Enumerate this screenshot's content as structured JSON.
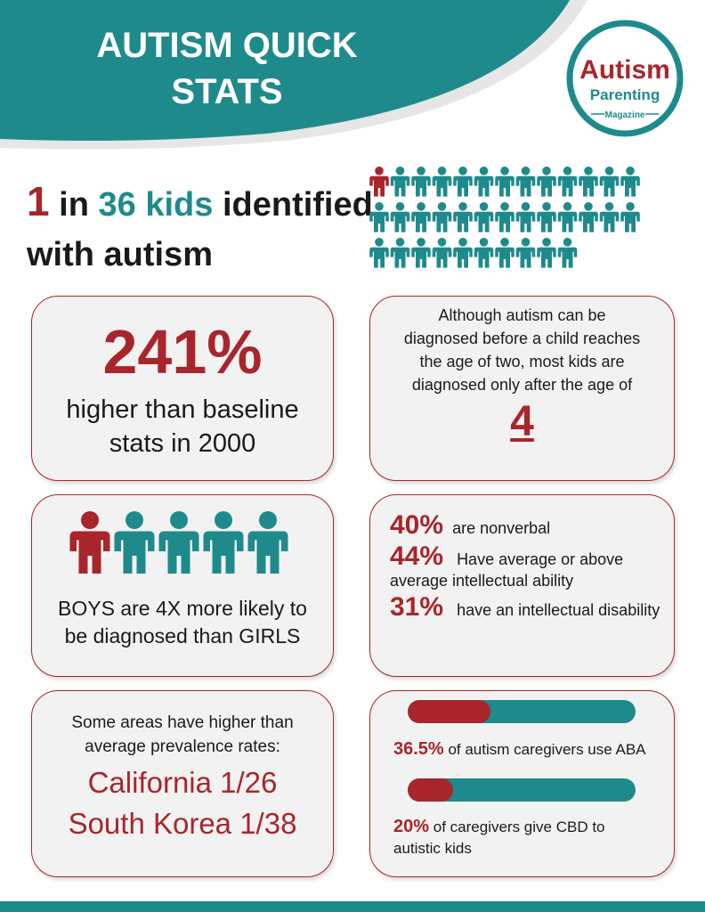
{
  "header": {
    "title_line1": "AUTISM QUICK",
    "title_line2": "STATS"
  },
  "logo": {
    "line1": "Autism",
    "line2": "Parenting",
    "line3": "Magazine"
  },
  "headline": {
    "numerator": 1,
    "connector": "in",
    "denominator": 36,
    "highlight": "kids",
    "rest_line1": "identified",
    "rest_line2": "with autism"
  },
  "baseline": {
    "stat": "241%",
    "line1": "higher than baseline",
    "line2": "stats in 2000"
  },
  "diagnosis_age": {
    "lines": [
      "Although autism can be",
      "diagnosed before a child reaches",
      "the age of two, most kids are",
      "diagnosed only after the age of"
    ],
    "age": "4"
  },
  "gender": {
    "line1": "BOYS are 4X more likely to",
    "line2": "be diagnosed than GIRLS"
  },
  "abilities": [
    {
      "stat": "40%",
      "text": "are nonverbal"
    },
    {
      "stat": "44%",
      "text": "Have average or above",
      "text2": "average intellectual ability"
    },
    {
      "stat": "31%",
      "text": "have an intellectual disability"
    }
  ],
  "regions": {
    "line1": "Some areas have higher than",
    "line2": "average prevalence rates:",
    "places": [
      "California 1/26",
      "South Korea 1/38"
    ]
  },
  "caregivers": [
    {
      "value": 36.5,
      "label": "36.5%",
      "text": "of autism caregivers use ABA"
    },
    {
      "value": 20,
      "label": "20%",
      "text": "of caregivers give CBD to",
      "text2": "autistic kids"
    }
  ]
}
